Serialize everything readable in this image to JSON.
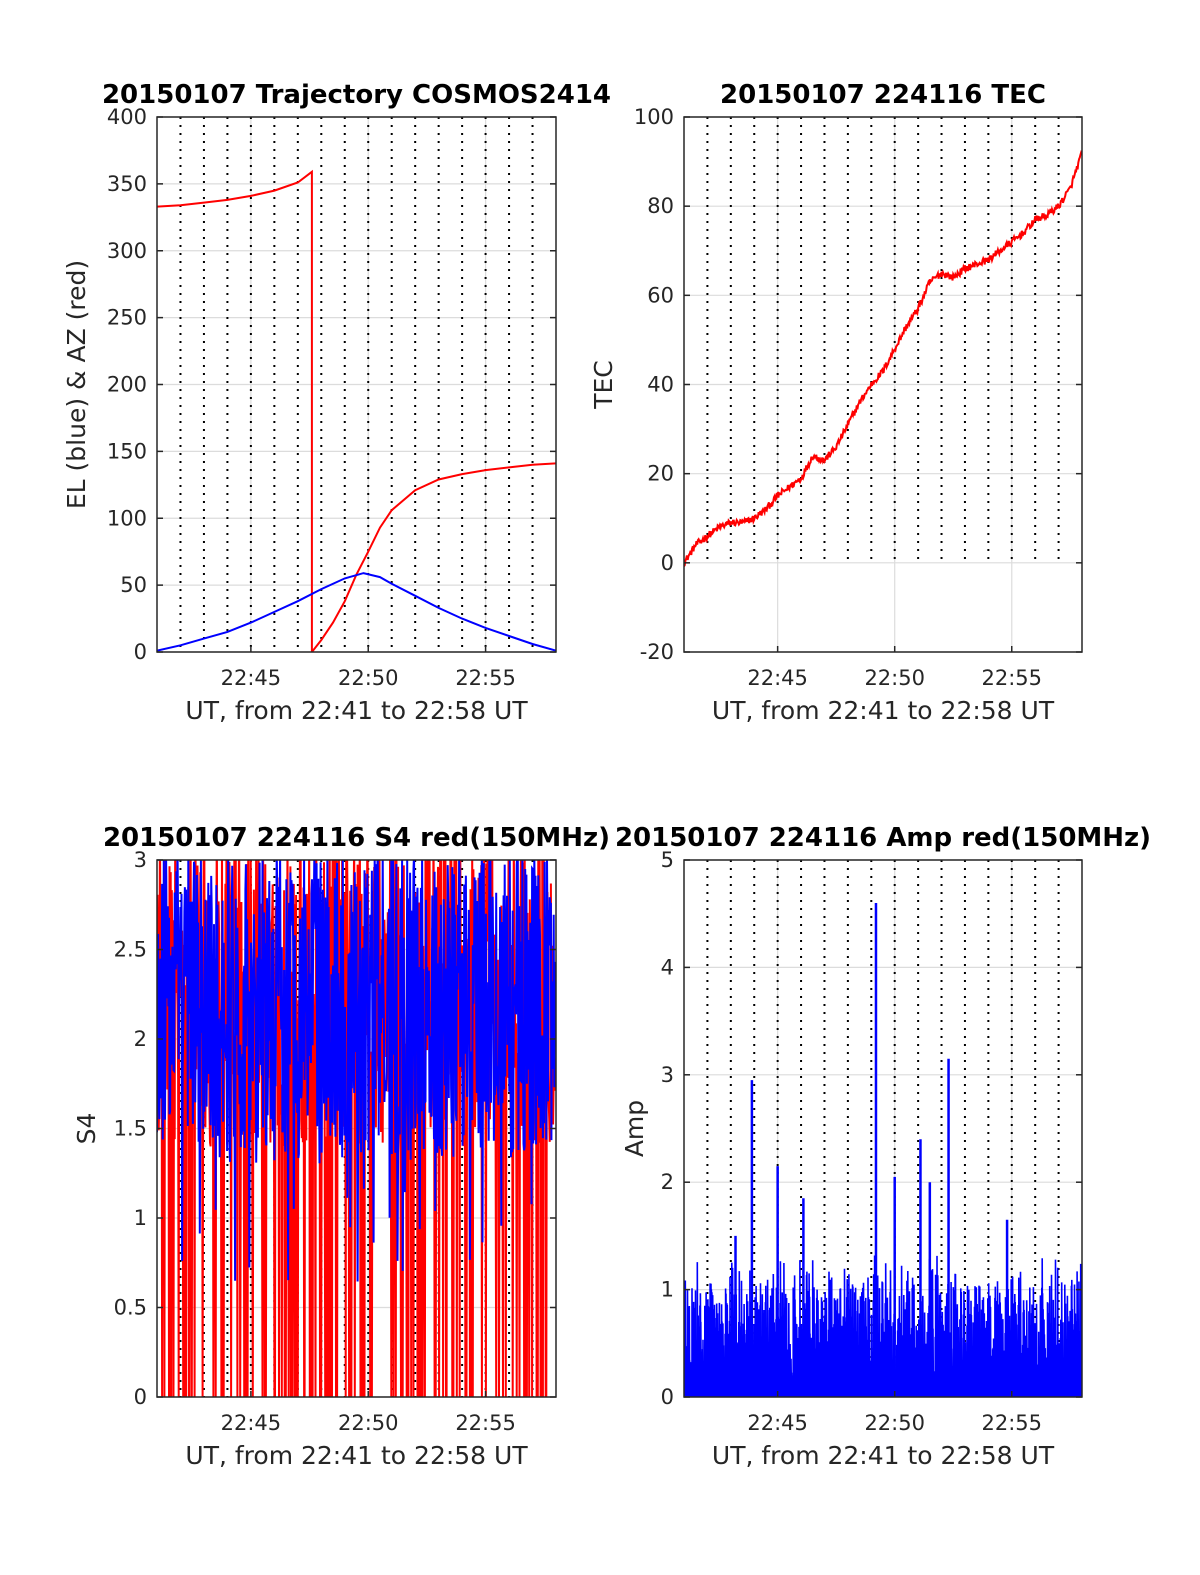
{
  "colors": {
    "red": "#ff0000",
    "blue": "#0000ff",
    "grid": "#dcdcdc",
    "axis": "#262626",
    "vline": "#000000"
  },
  "chart_data": [
    {
      "type": "line",
      "title": "20150107 Trajectory COSMOS2414",
      "xlabel": "UT, from 22:41 to 22:58 UT",
      "ylabel": "EL (blue) & AZ (red)",
      "xlim": [
        "22:41",
        "22:58"
      ],
      "ylim": [
        0,
        400
      ],
      "xticks": [
        "22:45",
        "22:50",
        "22:55"
      ],
      "yticks": [
        0,
        50,
        100,
        150,
        200,
        250,
        300,
        350,
        400
      ],
      "grid": true,
      "series": [
        {
          "color": "red",
          "x": [
            "22:41",
            "22:42",
            "22:43",
            "22:44",
            "22:45",
            "22:46",
            "22:47",
            "22:47.6",
            "22:47.6",
            "22:48",
            "22:48.5",
            "22:49",
            "22:49.5",
            "22:50",
            "22:50.5",
            "22:51",
            "22:52",
            "22:53",
            "22:54",
            "22:55",
            "22:56",
            "22:57",
            "22:58"
          ],
          "values": [
            333,
            334,
            336,
            338,
            341,
            345,
            351,
            359,
            0,
            9,
            22,
            38,
            58,
            75,
            93,
            106,
            121,
            129,
            133,
            136,
            138,
            140,
            141
          ]
        },
        {
          "color": "blue",
          "x": [
            "22:41",
            "22:42",
            "22:43",
            "22:44",
            "22:45",
            "22:46",
            "22:47",
            "22:48",
            "22:49",
            "22:49.8",
            "22:50.5",
            "22:51",
            "22:52",
            "22:53",
            "22:54",
            "22:55",
            "22:56",
            "22:57",
            "22:58"
          ],
          "values": [
            1,
            5,
            10,
            15,
            22,
            30,
            38,
            47,
            55,
            59,
            56,
            51,
            42,
            33,
            25,
            18,
            12,
            6,
            1
          ]
        }
      ]
    },
    {
      "type": "line",
      "title": "20150107 224116 TEC",
      "xlabel": "UT, from 22:41 to 22:58 UT",
      "ylabel": "TEC",
      "xlim": [
        "22:41",
        "22:58"
      ],
      "ylim": [
        -20,
        100
      ],
      "xticks": [
        "22:45",
        "22:50",
        "22:55"
      ],
      "yticks": [
        -20,
        0,
        20,
        40,
        60,
        80,
        100
      ],
      "grid": true,
      "series": [
        {
          "color": "red",
          "x": [
            "22:41",
            "22:41.5",
            "22:42",
            "22:42.5",
            "22:43",
            "22:43.5",
            "22:44",
            "22:44.5",
            "22:45",
            "22:45.5",
            "22:46",
            "22:46.5",
            "22:47",
            "22:47.5",
            "22:48",
            "22:48.5",
            "22:49",
            "22:49.5",
            "22:50",
            "22:50.5",
            "22:51",
            "22:51.5",
            "22:52",
            "22:52.5",
            "22:53",
            "22:53.5",
            "22:54",
            "22:54.5",
            "22:55",
            "22:55.5",
            "22:56",
            "22:56.5",
            "22:57",
            "22:57.5",
            "22:58"
          ],
          "values": [
            0,
            4,
            6,
            8,
            9,
            9,
            10,
            12,
            15,
            17,
            19,
            24,
            23,
            26,
            31,
            36,
            40,
            43,
            48,
            53,
            57,
            63,
            65,
            64,
            66,
            67,
            68,
            70,
            72,
            74,
            77,
            78,
            80,
            84,
            92
          ]
        }
      ]
    },
    {
      "type": "line",
      "title": "20150107 224116 S4 red(150MHz)",
      "xlabel": "UT, from 22:41 to 22:58 UT",
      "ylabel": "S4",
      "xlim": [
        "22:41",
        "22:58"
      ],
      "ylim": [
        0,
        3
      ],
      "xticks": [
        "22:45",
        "22:50",
        "22:55"
      ],
      "yticks": [
        0,
        0.5,
        1,
        1.5,
        2,
        2.5,
        3
      ],
      "grid": true,
      "series": [
        {
          "color": "red",
          "values_range": [
            0,
            3
          ]
        },
        {
          "color": "blue",
          "values_range": [
            0.6,
            3
          ]
        }
      ]
    },
    {
      "type": "line",
      "title": "20150107 224116 Amp red(150MHz)",
      "xlabel": "UT, from 22:41 to 22:58 UT",
      "ylabel": "Amp",
      "xlim": [
        "22:41",
        "22:58"
      ],
      "ylim": [
        0,
        5
      ],
      "xticks": [
        "22:45",
        "22:50",
        "22:55"
      ],
      "yticks": [
        0,
        1,
        2,
        3,
        4,
        5
      ],
      "grid": true,
      "series": [
        {
          "color": "blue",
          "peaks": [
            {
              "x": "22:43.2",
              "value": 1.5
            },
            {
              "x": "22:43.9",
              "value": 2.95
            },
            {
              "x": "22:45.0",
              "value": 2.15
            },
            {
              "x": "22:46.1",
              "value": 1.85
            },
            {
              "x": "22:49.2",
              "value": 4.6
            },
            {
              "x": "22:50.0",
              "value": 2.05
            },
            {
              "x": "22:51.1",
              "value": 2.4
            },
            {
              "x": "22:51.5",
              "value": 2.0
            },
            {
              "x": "22:52.3",
              "value": 3.15
            },
            {
              "x": "22:54.8",
              "value": 1.65
            }
          ]
        }
      ]
    }
  ]
}
